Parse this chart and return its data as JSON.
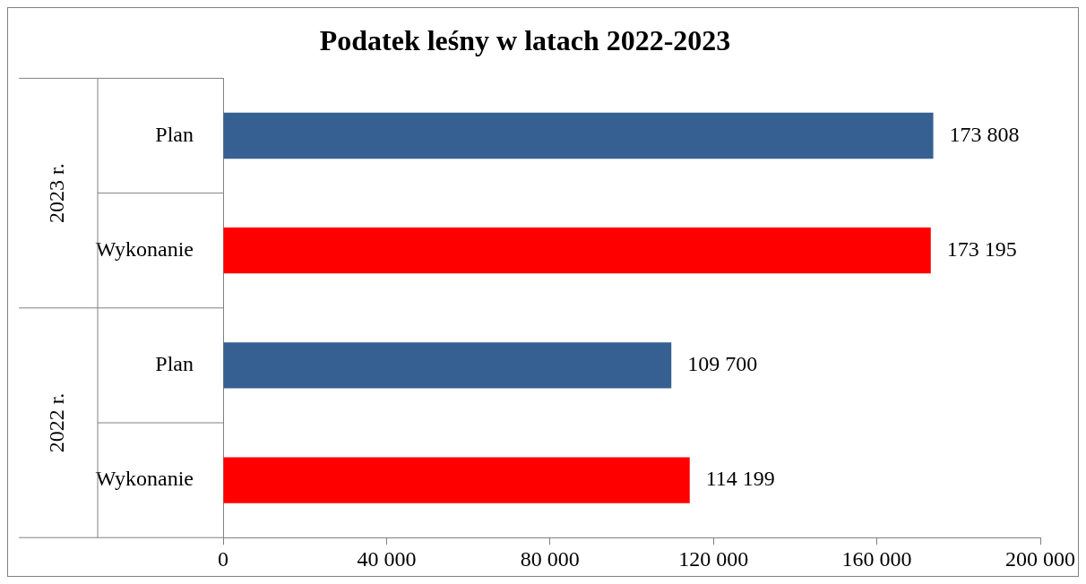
{
  "chart_data": {
    "type": "bar",
    "orientation": "horizontal",
    "title": "Podatek leśny w latach 2022-2023",
    "categories": [
      "Plan",
      "Wykonanie",
      "Plan",
      "Wykonanie"
    ],
    "values": [
      173808,
      173195,
      109700,
      114199
    ],
    "colors": [
      "#376092",
      "#ff0000",
      "#376092",
      "#ff0000"
    ],
    "value_labels": [
      "173 808",
      "173 195",
      "109 700",
      "114 199"
    ],
    "annotations": [
      "2023 r.",
      "2022 r."
    ],
    "xlim": [
      0,
      200000
    ],
    "xticks": [
      0,
      {
        "value": 40000,
        "label": "40 000"
      },
      {
        "value": 80000,
        "label": "80 000"
      },
      {
        "value": 120000,
        "label": "120 000"
      },
      {
        "value": 160000,
        "label": "160 000"
      },
      {
        "value": 200000,
        "label": "200 000"
      }
    ],
    "legend": false
  }
}
